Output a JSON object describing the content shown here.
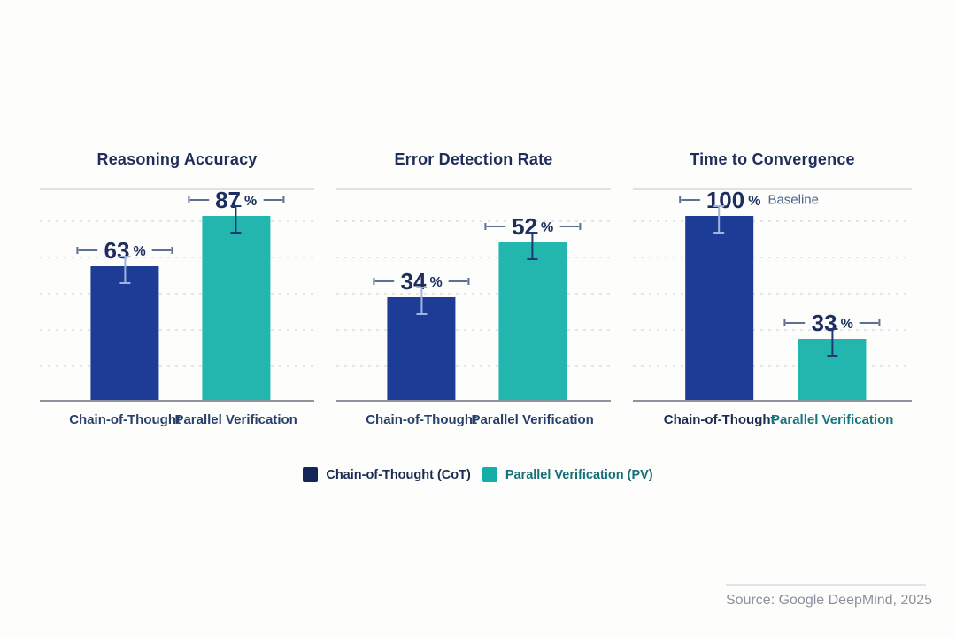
{
  "palette": {
    "page_bg": "#fdfdfc",
    "navy_bar": "#1c3c96",
    "teal_bar": "#22b6af",
    "legend_navy": "#12265a",
    "legend_teal": "#13aea8",
    "title_text": "#1f2d5a",
    "value_text": "#1d2e5e",
    "xlabel_navy": "#27406b",
    "xlabel_navy_bold": "#1b2b52",
    "xlabel_teal": "#17767c",
    "legend_text_navy": "#1b2b52",
    "legend_text_teal": "#156f77",
    "baseline_text": "#4a6388",
    "deco": "#5d6f92",
    "err_on_navy": "#9fb4de",
    "err_on_teal": "#1e3a6e",
    "gridline": "#e3e5e9",
    "top_line": "#dfe1e3",
    "axis_line": "#8e949d",
    "source_text": "#8a919b",
    "source_line": "#e2e4e7"
  },
  "chart_data": [
    {
      "type": "bar",
      "title": "Reasoning Accuracy",
      "categories": [
        "Chain-of-Thought",
        "Parallel Verification"
      ],
      "values": [
        63,
        87
      ],
      "value_suffix": "%",
      "ylim": [
        0,
        100
      ],
      "grid": "horizontal-dashed",
      "error_bars": true,
      "bar_colors": [
        "navy_bar",
        "teal_bar"
      ],
      "xlabel_styles": [
        "navy",
        "navy"
      ],
      "annotations": []
    },
    {
      "type": "bar",
      "title": "Error Detection Rate",
      "categories": [
        "Chain-of-Thought",
        "Parallel Verification"
      ],
      "values": [
        34,
        52
      ],
      "value_suffix": "%",
      "ylim": [
        0,
        70
      ],
      "grid": "horizontal-dashed",
      "error_bars": true,
      "bar_colors": [
        "navy_bar",
        "teal_bar"
      ],
      "xlabel_styles": [
        "navy",
        "navy"
      ],
      "annotations": []
    },
    {
      "type": "bar",
      "title": "Time to Convergence",
      "categories": [
        "Chain-of-Thought",
        "Parallel Verification"
      ],
      "values": [
        100,
        33
      ],
      "value_suffix": "%",
      "ylim": [
        0,
        115
      ],
      "grid": "horizontal-dashed",
      "error_bars": true,
      "bar_colors": [
        "navy_bar",
        "teal_bar"
      ],
      "xlabel_styles": [
        "navy_bold",
        "teal"
      ],
      "annotations": [
        {
          "bar": 0,
          "text": "Baseline"
        }
      ]
    }
  ],
  "legend": {
    "items": [
      {
        "label": "Chain-of-Thought (CoT)",
        "swatch": "legend_navy",
        "text_color": "legend_text_navy"
      },
      {
        "label": "Parallel Verification (PV)",
        "swatch": "legend_teal",
        "text_color": "legend_text_teal"
      }
    ]
  },
  "source": {
    "label": "Source: Google DeepMind, 2025"
  }
}
